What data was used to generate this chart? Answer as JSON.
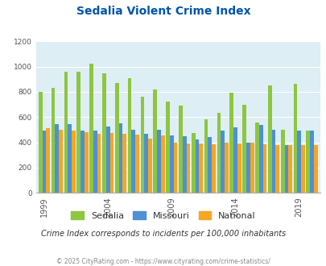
{
  "title": "Sedalia Violent Crime Index",
  "years": [
    1999,
    2000,
    2001,
    2002,
    2003,
    2004,
    2005,
    2006,
    2007,
    2008,
    2009,
    2010,
    2011,
    2012,
    2013,
    2014,
    2015,
    2016,
    2017,
    2018,
    2019,
    2020
  ],
  "sedalia": [
    800,
    830,
    960,
    960,
    1020,
    945,
    870,
    910,
    760,
    820,
    720,
    690,
    475,
    580,
    635,
    790,
    700,
    555,
    850,
    500,
    860,
    490
  ],
  "missouri": [
    490,
    545,
    545,
    490,
    490,
    525,
    550,
    500,
    465,
    500,
    455,
    450,
    420,
    440,
    495,
    520,
    400,
    535,
    500,
    380,
    495,
    490
  ],
  "national": [
    510,
    500,
    495,
    480,
    465,
    475,
    470,
    460,
    430,
    455,
    400,
    390,
    390,
    385,
    395,
    390,
    400,
    385,
    380,
    380,
    375,
    380
  ],
  "sedalia_color": "#8dc63f",
  "missouri_color": "#4d90d4",
  "national_color": "#f5a623",
  "bg_color": "#ddeef5",
  "title_color": "#0055aa",
  "subtitle": "Crime Index corresponds to incidents per 100,000 inhabitants",
  "footer": "© 2025 CityRating.com - https://www.cityrating.com/crime-statistics/",
  "ylim": [
    0,
    1200
  ],
  "yticks": [
    0,
    200,
    400,
    600,
    800,
    1000,
    1200
  ],
  "xtick_years": [
    1999,
    2004,
    2009,
    2014,
    2019
  ]
}
